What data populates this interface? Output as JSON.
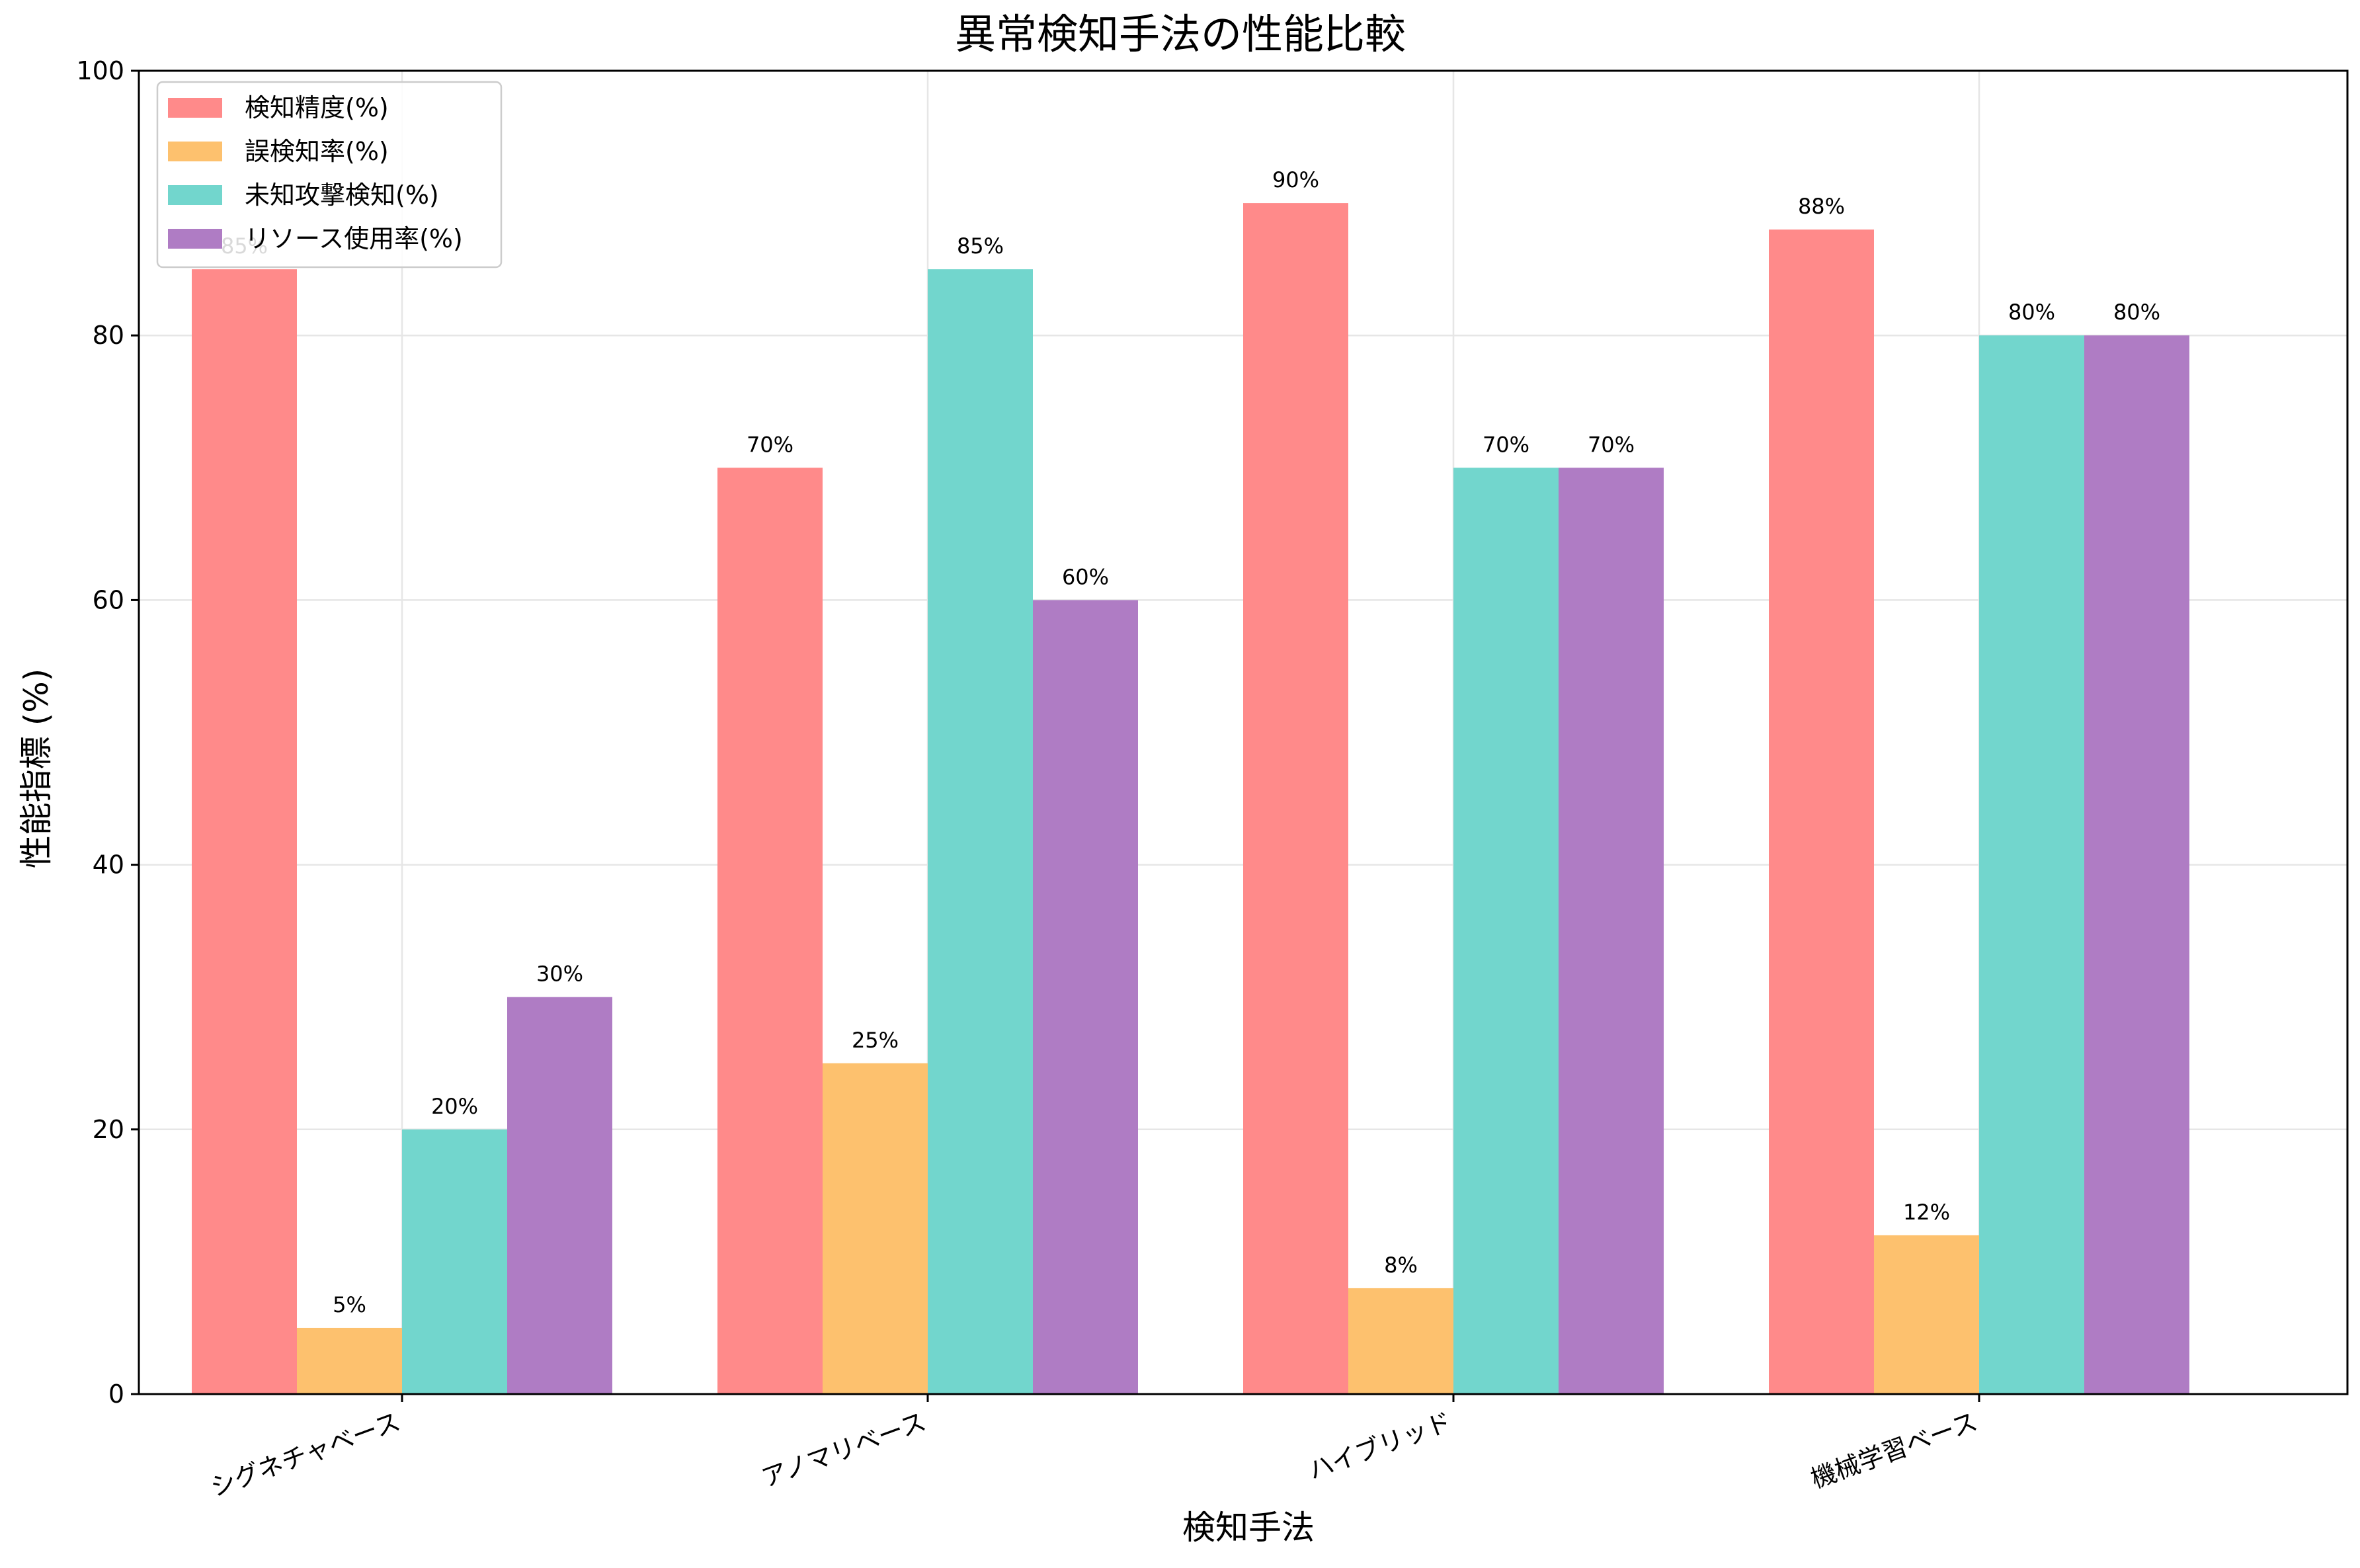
{
  "chart_data": {
    "type": "bar",
    "title": "異常検知手法の性能比較",
    "xlabel": "検知手法",
    "ylabel": "性能指標 (%)",
    "ylim": [
      0,
      100
    ],
    "yticks": [
      "0",
      "20",
      "40",
      "60",
      "80",
      "100"
    ],
    "categories": [
      "シグネチャベース",
      "アノマリベース",
      "ハイブリッド",
      "機械学習ベース"
    ],
    "series": [
      {
        "name": "検知精度(%)",
        "color": "#ff8a8a",
        "values": [
          85,
          70,
          90,
          88
        ],
        "labels": [
          "85%",
          "70%",
          "90%",
          "88%"
        ]
      },
      {
        "name": "誤検知率(%)",
        "color": "#fdc16e",
        "values": [
          5,
          25,
          8,
          12
        ],
        "labels": [
          "5%",
          "25%",
          "8%",
          "12%"
        ]
      },
      {
        "name": "未知攻撃検知(%)",
        "color": "#72d6cd",
        "values": [
          20,
          85,
          70,
          80
        ],
        "labels": [
          "20%",
          "85%",
          "70%",
          "80%"
        ]
      },
      {
        "name": "リソース使用率(%)",
        "color": "#af7cc4",
        "values": [
          30,
          60,
          70,
          80
        ],
        "labels": [
          "30%",
          "60%",
          "70%",
          "80%"
        ]
      }
    ],
    "grid": true,
    "legend_position": "top-left"
  }
}
